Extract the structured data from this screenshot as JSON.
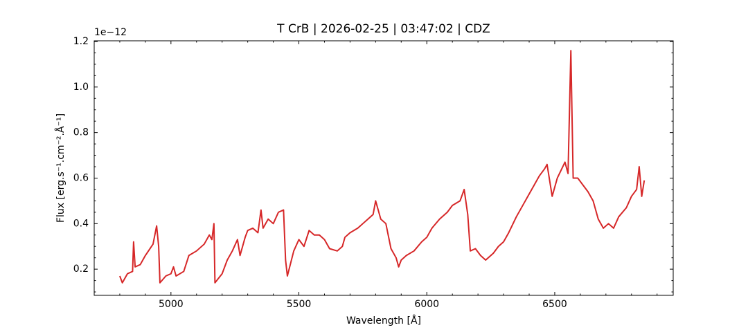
{
  "chart_data": {
    "type": "line",
    "title": "T CrB | 2026-02-25 | 03:47:02 | CDZ",
    "xlabel": "Wavelength [Å]",
    "ylabel": "Flux [erg.s⁻¹.cm⁻².Å⁻¹]",
    "y_offset_label": "1e−12",
    "color": "#d62728",
    "xlim": [
      4700,
      6963
    ],
    "ylim": [
      0.085,
      1.203
    ],
    "xticks": [
      5000,
      5500,
      6000,
      6500
    ],
    "yticks": [
      0.2,
      0.4,
      0.6,
      0.8,
      {
        "value": 1,
        "label": "1.0"
      },
      1.2
    ],
    "xminorticks": [
      4700,
      4800,
      4900,
      5100,
      5200,
      5300,
      5400,
      5600,
      5700,
      5800,
      5900,
      6100,
      6200,
      6300,
      6400,
      6600,
      6700,
      6800,
      6900
    ],
    "yminorticks": [
      0.1,
      0.15,
      0.25,
      0.3,
      0.35,
      0.45,
      0.5,
      0.55,
      0.65,
      0.7,
      0.75,
      0.85,
      0.9,
      0.95,
      1.05,
      1.1,
      1.15
    ],
    "x": [
      4800,
      4810,
      4830,
      4850,
      4854,
      4860,
      4880,
      4900,
      4930,
      4944,
      4952,
      4957,
      4980,
      5000,
      5010,
      5020,
      5050,
      5070,
      5100,
      5130,
      5150,
      5160,
      5168,
      5172,
      5200,
      5220,
      5240,
      5260,
      5270,
      5290,
      5300,
      5320,
      5340,
      5352,
      5360,
      5380,
      5400,
      5420,
      5440,
      5448,
      5455,
      5480,
      5500,
      5520,
      5540,
      5560,
      5580,
      5600,
      5620,
      5650,
      5670,
      5680,
      5700,
      5730,
      5750,
      5770,
      5790,
      5800,
      5820,
      5840,
      5860,
      5880,
      5890,
      5900,
      5920,
      5950,
      5980,
      6000,
      6020,
      6050,
      6080,
      6100,
      6130,
      6146,
      6160,
      6170,
      6190,
      6210,
      6230,
      6260,
      6280,
      6300,
      6320,
      6350,
      6380,
      6400,
      6420,
      6440,
      6460,
      6470,
      6490,
      6510,
      6540,
      6552,
      6563,
      6572,
      6590,
      6610,
      6630,
      6650,
      6670,
      6690,
      6710,
      6730,
      6750,
      6780,
      6800,
      6820,
      6830,
      6840,
      6850
    ],
    "values": [
      0.17,
      0.14,
      0.18,
      0.19,
      0.32,
      0.21,
      0.22,
      0.26,
      0.31,
      0.39,
      0.3,
      0.14,
      0.17,
      0.18,
      0.21,
      0.17,
      0.19,
      0.26,
      0.28,
      0.31,
      0.35,
      0.33,
      0.4,
      0.14,
      0.18,
      0.24,
      0.28,
      0.33,
      0.26,
      0.34,
      0.37,
      0.38,
      0.36,
      0.46,
      0.38,
      0.42,
      0.4,
      0.45,
      0.46,
      0.24,
      0.17,
      0.28,
      0.33,
      0.3,
      0.37,
      0.35,
      0.35,
      0.33,
      0.29,
      0.28,
      0.3,
      0.34,
      0.36,
      0.38,
      0.4,
      0.42,
      0.44,
      0.5,
      0.42,
      0.4,
      0.29,
      0.25,
      0.21,
      0.24,
      0.26,
      0.28,
      0.32,
      0.34,
      0.38,
      0.42,
      0.45,
      0.48,
      0.5,
      0.55,
      0.44,
      0.28,
      0.29,
      0.26,
      0.24,
      0.27,
      0.3,
      0.32,
      0.36,
      0.43,
      0.49,
      0.53,
      0.57,
      0.61,
      0.64,
      0.66,
      0.52,
      0.6,
      0.67,
      0.62,
      1.16,
      0.6,
      0.6,
      0.57,
      0.54,
      0.5,
      0.42,
      0.38,
      0.4,
      0.38,
      0.43,
      0.47,
      0.52,
      0.55,
      0.65,
      0.52,
      0.59
    ]
  }
}
